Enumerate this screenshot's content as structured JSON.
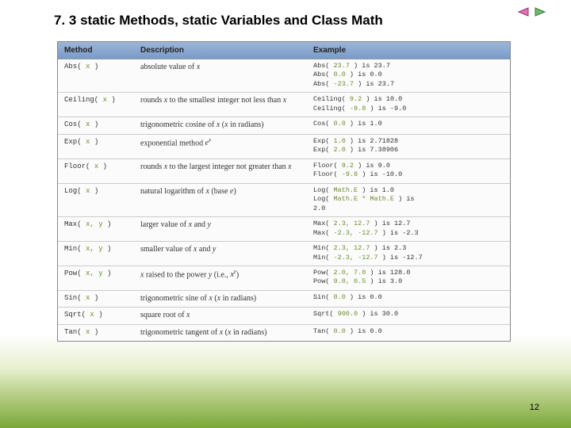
{
  "slide": {
    "title": "7. 3 static Methods, static Variables and Class Math",
    "page_number": "12"
  },
  "header": {
    "method": "Method",
    "description": "Description",
    "example": "Example"
  },
  "rows": [
    {
      "method_name": "Abs",
      "method_args": "x",
      "desc": "absolute value of <i>x</i>",
      "examples": [
        {
          "fn": "Abs",
          "args": "23.7",
          "result": "is 23.7"
        },
        {
          "fn": "Abs",
          "args": "0.0",
          "result": "is 0.0"
        },
        {
          "fn": "Abs",
          "args": "-23.7",
          "result": "is 23.7"
        }
      ]
    },
    {
      "method_name": "Ceiling",
      "method_args": "x",
      "desc": "rounds <i>x</i> to the smallest integer not less than <i>x</i>",
      "examples": [
        {
          "fn": "Ceiling",
          "args": "9.2",
          "result": "is 10.0"
        },
        {
          "fn": "Ceiling",
          "args": "-9.8",
          "result": "is -9.0"
        }
      ]
    },
    {
      "method_name": "Cos",
      "method_args": "x",
      "desc": "trigonometric cosine of <i>x</i> (<i>x</i> in radians)",
      "examples": [
        {
          "fn": "Cos",
          "args": "0.0",
          "result": "is 1.0"
        }
      ]
    },
    {
      "method_name": "Exp",
      "method_args": "x",
      "desc": "exponential method <i>e<sup>x</sup></i>",
      "examples": [
        {
          "fn": "Exp",
          "args": "1.0",
          "result": "is 2.71828"
        },
        {
          "fn": "Exp",
          "args": "2.0",
          "result": "is 7.38906"
        }
      ]
    },
    {
      "method_name": "Floor",
      "method_args": "x",
      "desc": "rounds <i>x</i> to the largest integer not greater than <i>x</i>",
      "examples": [
        {
          "fn": "Floor",
          "args": "9.2",
          "result": "is 9.0"
        },
        {
          "fn": "Floor",
          "args": "-9.8",
          "result": "is -10.0"
        }
      ]
    },
    {
      "method_name": "Log",
      "method_args": "x",
      "desc": "natural logarithm of <i>x</i> (base <i>e</i>)",
      "examples": [
        {
          "fn": "Log",
          "args": "Math.E",
          "result": "is 1.0"
        },
        {
          "fn": "Log",
          "args": "Math.E * Math.E",
          "result": "is 2.0",
          "wrap": true
        }
      ]
    },
    {
      "method_name": "Max",
      "method_args": "x, y",
      "desc": "larger value of <i>x</i> and <i>y</i>",
      "examples": [
        {
          "fn": "Max",
          "args": "2.3, 12.7",
          "result": "is 12.7"
        },
        {
          "fn": "Max",
          "args": "-2.3, -12.7",
          "result": "is -2.3"
        }
      ]
    },
    {
      "method_name": "Min",
      "method_args": "x, y",
      "desc": "smaller value of <i>x</i> and <i>y</i>",
      "examples": [
        {
          "fn": "Min",
          "args": "2.3, 12.7",
          "result": "is 2.3"
        },
        {
          "fn": "Min",
          "args": "-2.3, -12.7",
          "result": "is -12.7"
        }
      ]
    },
    {
      "method_name": "Pow",
      "method_args": "x, y",
      "desc": "<i>x</i> raised to the power <i>y</i> (i.e., <i>x<sup>y</sup></i>)",
      "examples": [
        {
          "fn": "Pow",
          "args": "2.0, 7.0",
          "result": "is 128.0"
        },
        {
          "fn": "Pow",
          "args": "9.0, 0.5",
          "result": "is 3.0"
        }
      ]
    },
    {
      "method_name": "Sin",
      "method_args": "x",
      "desc": "trigonometric sine of <i>x</i> (<i>x</i> in radians)",
      "examples": [
        {
          "fn": "Sin",
          "args": "0.0",
          "result": "is 0.0"
        }
      ]
    },
    {
      "method_name": "Sqrt",
      "method_args": "x",
      "desc": "square root of <i>x</i>",
      "examples": [
        {
          "fn": "Sqrt",
          "args": "900.0",
          "result": "is 30.0"
        }
      ]
    },
    {
      "method_name": "Tan",
      "method_args": "x",
      "desc": "trigonometric tangent of <i>x</i> (<i>x</i> in radians)",
      "examples": [
        {
          "fn": "Tan",
          "args": "0.0",
          "result": "is 0.0"
        }
      ]
    }
  ],
  "colors": {
    "header_bg_top": "#9bb5d8",
    "header_bg_bottom": "#7a9bc8",
    "arg_color": "#6b8e23",
    "row_border": "#cccccc",
    "bg_gradient_end": "#7ba838"
  }
}
